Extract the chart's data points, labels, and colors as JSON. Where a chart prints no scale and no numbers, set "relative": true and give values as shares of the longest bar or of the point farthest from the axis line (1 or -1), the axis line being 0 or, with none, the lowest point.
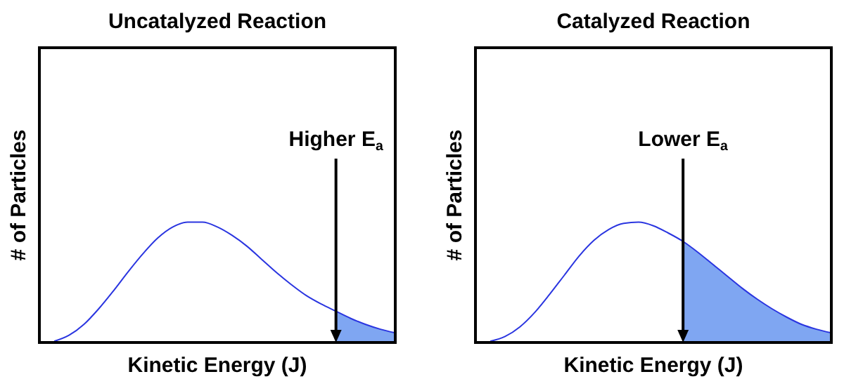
{
  "chart_data": [
    {
      "type": "line",
      "title": "Uncatalyzed Reaction",
      "xlabel": "Kinetic Energy (J)",
      "ylabel": "# of Particles",
      "relative": true,
      "categories": [
        null,
        null,
        null,
        null,
        null,
        null,
        null,
        null,
        null,
        null,
        null,
        null,
        null,
        null,
        null,
        null,
        null,
        null,
        null,
        null,
        null,
        null,
        null,
        null,
        null
      ],
      "series": [
        {
          "color": "#2a35e0",
          "values": [
            null,
            0.01,
            0.06,
            0.15,
            0.28,
            0.43,
            0.59,
            0.74,
            0.87,
            0.96,
            1.0,
            1.0,
            0.96,
            0.89,
            0.8,
            0.69,
            0.58,
            0.48,
            0.39,
            0.32,
            0.26,
            0.2,
            0.15,
            0.11,
            0.08
          ]
        },
        {
          "type": "area",
          "color": "#7fa6f2",
          "values": [
            null,
            null,
            null,
            null,
            null,
            null,
            null,
            null,
            null,
            null,
            null,
            null,
            null,
            null,
            null,
            null,
            null,
            null,
            null,
            null,
            0.26,
            0.2,
            0.15,
            0.11,
            0.08
          ]
        }
      ],
      "annotations": [
        "Higher E$_{a}$"
      ]
    },
    {
      "type": "line",
      "title": "Catalyzed Reaction",
      "xlabel": "Kinetic Energy (J)",
      "ylabel": "# of Particles",
      "relative": true,
      "categories": [
        null,
        null,
        null,
        null,
        null,
        null,
        null,
        null,
        null,
        null,
        null,
        null,
        null,
        null,
        null,
        null,
        null,
        null,
        null,
        null,
        null,
        null,
        null,
        null,
        null
      ],
      "series": [
        {
          "color": "#2a35e0",
          "values": [
            null,
            0.01,
            0.05,
            0.13,
            0.25,
            0.4,
            0.56,
            0.72,
            0.85,
            0.94,
            0.99,
            1.0,
            0.97,
            0.91,
            0.84,
            0.75,
            0.65,
            0.55,
            0.45,
            0.36,
            0.28,
            0.21,
            0.15,
            0.11,
            0.08
          ]
        },
        {
          "type": "area",
          "color": "#7fa6f2",
          "values": [
            null,
            null,
            null,
            null,
            null,
            null,
            null,
            null,
            null,
            null,
            null,
            null,
            null,
            null,
            0.84,
            0.75,
            0.65,
            0.55,
            0.45,
            0.36,
            0.28,
            0.21,
            0.15,
            0.11,
            0.08
          ]
        }
      ],
      "annotations": [
        "Lower E$_{a}$"
      ]
    }
  ]
}
